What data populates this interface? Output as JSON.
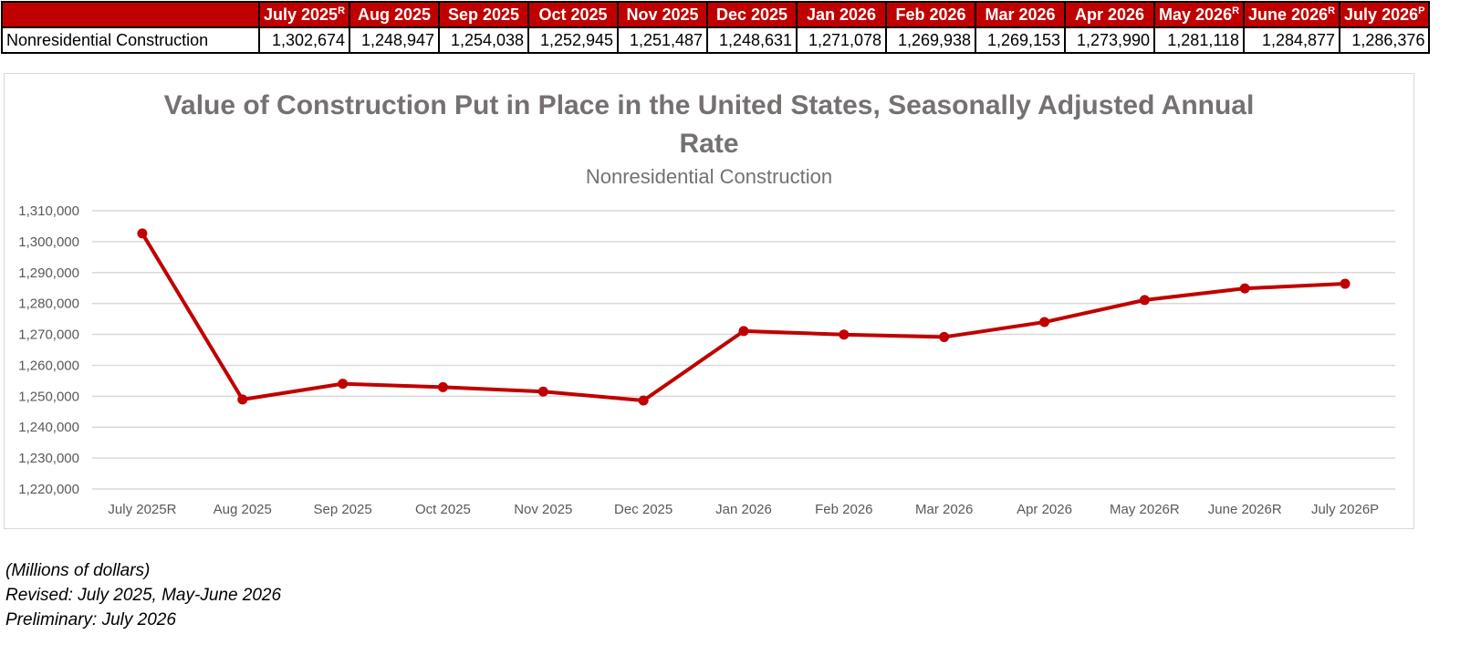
{
  "table": {
    "headers": [
      {
        "label": "July 2025",
        "mark": "R"
      },
      {
        "label": "Aug 2025",
        "mark": ""
      },
      {
        "label": "Sep 2025",
        "mark": ""
      },
      {
        "label": "Oct 2025",
        "mark": ""
      },
      {
        "label": "Nov 2025",
        "mark": ""
      },
      {
        "label": "Dec 2025",
        "mark": ""
      },
      {
        "label": "Jan 2026",
        "mark": ""
      },
      {
        "label": "Feb 2026",
        "mark": ""
      },
      {
        "label": "Mar 2026",
        "mark": ""
      },
      {
        "label": "Apr 2026",
        "mark": ""
      },
      {
        "label": "May 2026",
        "mark": "R"
      },
      {
        "label": "June 2026",
        "mark": "R"
      },
      {
        "label": "July 2026",
        "mark": "P"
      }
    ],
    "row_label": "Nonresidential Construction",
    "values": [
      "1,302,674",
      "1,248,947",
      "1,254,038",
      "1,252,945",
      "1,251,487",
      "1,248,631",
      "1,271,078",
      "1,269,938",
      "1,269,153",
      "1,273,990",
      "1,281,118",
      "1,284,877",
      "1,286,376"
    ]
  },
  "chart_data": {
    "type": "line",
    "title": "Value of Construction Put in Place in the United States, Seasonally Adjusted Annual Rate",
    "title_lines": [
      "Value of Construction Put in Place in the United States, Seasonally Adjusted Annual",
      "Rate"
    ],
    "subtitle": "Nonresidential Construction",
    "categories": [
      "July 2025R",
      "Aug 2025",
      "Sep 2025",
      "Oct 2025",
      "Nov 2025",
      "Dec 2025",
      "Jan 2026",
      "Feb 2026",
      "Mar 2026",
      "Apr 2026",
      "May 2026R",
      "June 2026R",
      "July 2026P"
    ],
    "series": [
      {
        "values": [
          1302674,
          1248947,
          1254038,
          1252945,
          1251487,
          1248631,
          1271078,
          1269938,
          1269153,
          1273990,
          1281118,
          1284877,
          1286376
        ]
      }
    ],
    "ylim": [
      1220000,
      1310000
    ],
    "yticks": [
      "1,220,000",
      "1,230,000",
      "1,240,000",
      "1,250,000",
      "1,260,000",
      "1,270,000",
      "1,280,000",
      "1,290,000",
      "1,300,000",
      "1,310,000"
    ],
    "ytick_values": [
      1220000,
      1230000,
      1240000,
      1250000,
      1260000,
      1270000,
      1280000,
      1290000,
      1300000,
      1310000
    ],
    "grid": true,
    "line_color": "#c00000",
    "title_color": "#767171",
    "axis_text_color": "#595959"
  },
  "notes": {
    "units": "(Millions of dollars)",
    "revised": "Revised: July 2025, May-June 2026",
    "preliminary": "Preliminary: July 2026"
  }
}
